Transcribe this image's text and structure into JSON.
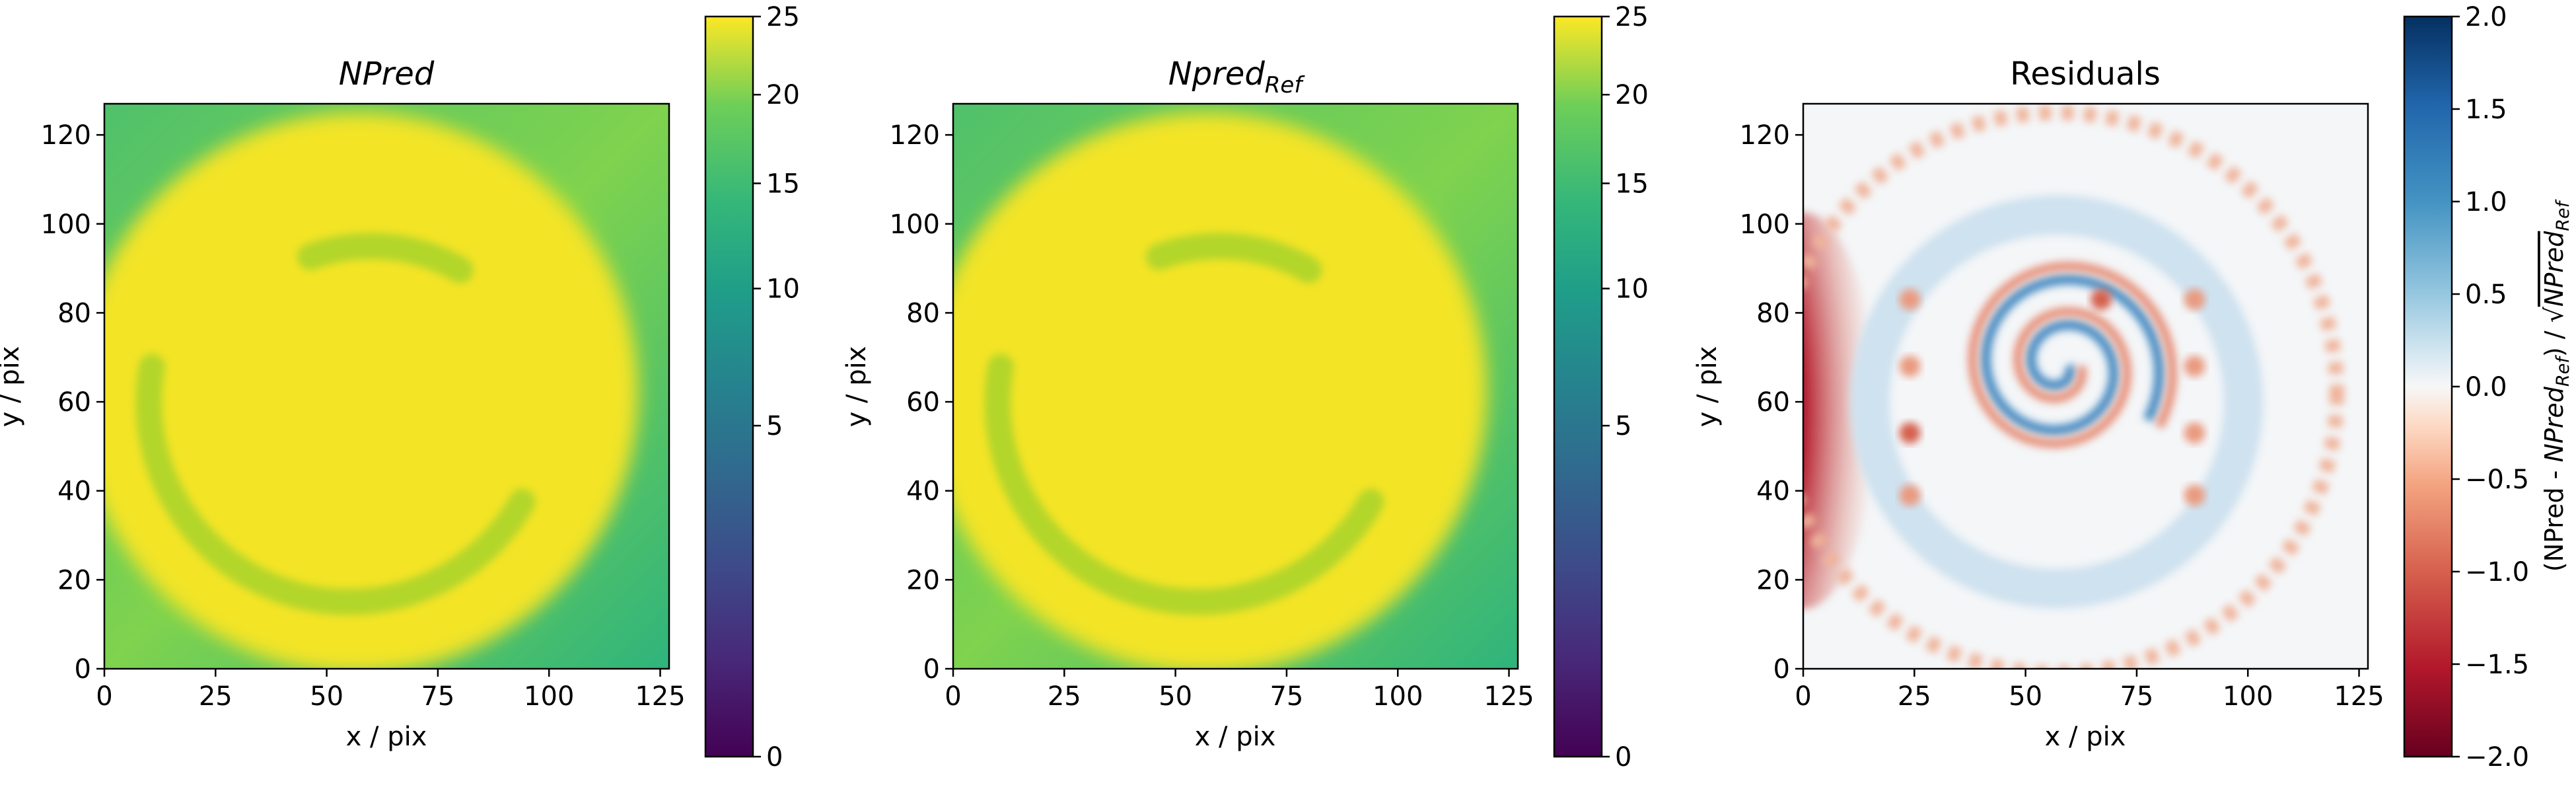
{
  "chart_data": [
    {
      "type": "heatmap",
      "title": "NPred",
      "xlabel": "x / pix",
      "ylabel": "y / pix",
      "xlim": [
        0,
        127
      ],
      "ylim": [
        0,
        127
      ],
      "xticks": [
        "0",
        "25",
        "50",
        "75",
        "100",
        "125"
      ],
      "yticks": [
        "0",
        "20",
        "40",
        "60",
        "80",
        "100",
        "120"
      ],
      "colormap": "viridis",
      "colorbar": {
        "label": "",
        "range": [
          0,
          25
        ],
        "scale": "sqrt",
        "ticks": [
          "0",
          "5",
          "10",
          "15",
          "20",
          "25"
        ]
      },
      "features": {
        "disk": {
          "center": [
            57,
            62
          ],
          "radius": 63,
          "value": 25
        },
        "edge_value": 12,
        "arcs": [
          {
            "center": [
              60,
              55
            ],
            "radius": 40,
            "from_deg": 110,
            "to_deg": 60,
            "value": 18
          },
          {
            "center": [
              55,
              60
            ],
            "radius": 45,
            "from_deg": 170,
            "to_deg": 330,
            "value": 18
          }
        ]
      }
    },
    {
      "type": "heatmap",
      "title": "Npred",
      "title_subscript": "Ref",
      "xlabel": "x / pix",
      "ylabel": "y / pix",
      "xlim": [
        0,
        127
      ],
      "ylim": [
        0,
        127
      ],
      "xticks": [
        "0",
        "25",
        "50",
        "75",
        "100",
        "125"
      ],
      "yticks": [
        "0",
        "20",
        "40",
        "60",
        "80",
        "100",
        "120"
      ],
      "colormap": "viridis",
      "colorbar": {
        "label": "",
        "range": [
          0,
          25
        ],
        "scale": "sqrt",
        "ticks": [
          "0",
          "5",
          "10",
          "15",
          "20",
          "25"
        ]
      },
      "features": {
        "disk": {
          "center": [
            57,
            62
          ],
          "radius": 63,
          "value": 25
        },
        "edge_value": 12,
        "arcs": [
          {
            "center": [
              60,
              55
            ],
            "radius": 40,
            "from_deg": 110,
            "to_deg": 60,
            "value": 18
          },
          {
            "center": [
              55,
              60
            ],
            "radius": 45,
            "from_deg": 170,
            "to_deg": 330,
            "value": 18
          }
        ]
      }
    },
    {
      "type": "heatmap",
      "title": "Residuals",
      "xlabel": "x / pix",
      "ylabel": "y / pix",
      "xlim": [
        0,
        127
      ],
      "ylim": [
        0,
        127
      ],
      "xticks": [
        "0",
        "25",
        "50",
        "75",
        "100",
        "125"
      ],
      "yticks": [
        "0",
        "20",
        "40",
        "60",
        "80",
        "100",
        "120"
      ],
      "colormap": "RdBu",
      "colorbar": {
        "label": "(NPred - NPred_Ref) / √NPred_Ref",
        "label_parts": [
          "(NPred - ",
          "NPred",
          "Ref",
          ") / √",
          "NPred",
          "Ref"
        ],
        "range": [
          -2.0,
          2.0
        ],
        "scale": "linear",
        "ticks": [
          "−2.0",
          "−1.5",
          "−1.0",
          "−0.5",
          "0.0",
          "0.5",
          "1.0",
          "1.5",
          "2.0"
        ]
      },
      "features": {
        "left_edge_blob": {
          "center": [
            0,
            58
          ],
          "value": -2.0
        },
        "outer_ring": {
          "center": [
            57,
            62
          ],
          "radius": 63,
          "value": -0.6
        },
        "inner_ring": {
          "center": [
            57,
            60
          ],
          "radius": 42,
          "value": 0.2
        },
        "spiral": {
          "center": [
            58,
            68
          ],
          "value": 0.6
        },
        "spots": [
          {
            "x": 24,
            "y": 83,
            "value": -0.8
          },
          {
            "x": 24,
            "y": 68,
            "value": -0.8
          },
          {
            "x": 24,
            "y": 53,
            "value": -1.2
          },
          {
            "x": 24,
            "y": 39,
            "value": -0.8
          },
          {
            "x": 88,
            "y": 83,
            "value": -0.6
          },
          {
            "x": 88,
            "y": 68,
            "value": -0.6
          },
          {
            "x": 88,
            "y": 53,
            "value": -0.6
          },
          {
            "x": 88,
            "y": 39,
            "value": -0.6
          },
          {
            "x": 67,
            "y": 83,
            "value": -1.0
          }
        ]
      }
    }
  ]
}
